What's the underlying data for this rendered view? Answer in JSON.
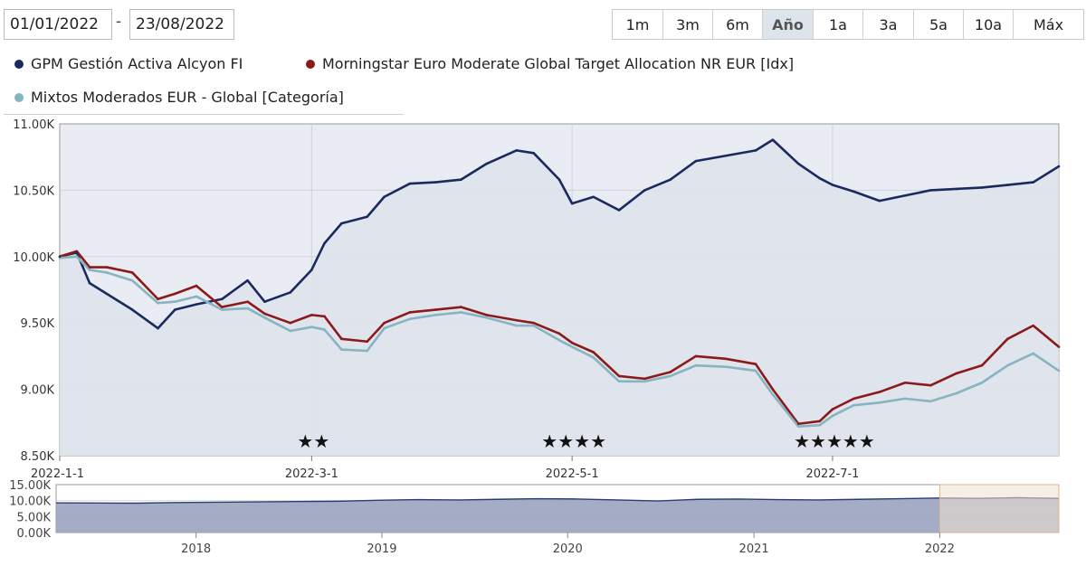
{
  "date_range": {
    "from": "01/01/2022",
    "separator": "-",
    "to": "23/08/2022"
  },
  "range_buttons": [
    {
      "label": "1m",
      "active": false
    },
    {
      "label": "3m",
      "active": false
    },
    {
      "label": "6m",
      "active": false
    },
    {
      "label": "Año",
      "active": true
    },
    {
      "label": "1a",
      "active": false
    },
    {
      "label": "3a",
      "active": false
    },
    {
      "label": "5a",
      "active": false
    },
    {
      "label": "10a",
      "active": false
    },
    {
      "label": "Máx",
      "active": false
    }
  ],
  "legend": [
    {
      "name": "GPM Gestión Activa Alcyon FI",
      "color": "#1b2a5e"
    },
    {
      "name": "Morningstar Euro Moderate Global Target Allocation NR EUR [Idx]",
      "color": "#8b1a1a"
    },
    {
      "name": "Mixtos Moderados EUR - Global [Categoría]",
      "color": "#86b4c0"
    }
  ],
  "colors": {
    "plot_bg": "#e9ecf2",
    "grid": "#cfd3dc",
    "nav_fill": "#9aa3c0",
    "nav_line": "#2e3c74",
    "nav_window": "#f1e2cf"
  },
  "chart_data": {
    "type": "line",
    "x_tick_labels": [
      "2022-1-1",
      "2022-3-1",
      "2022-5-1",
      "2022-7-1"
    ],
    "x_range": [
      "2022-01-01",
      "2022-08-23"
    ],
    "y_tick_labels": [
      "11.00K",
      "10.50K",
      "10.00K",
      "9.50K",
      "9.00K",
      "8.50K"
    ],
    "ylim": [
      8500,
      11000
    ],
    "grid": true,
    "series": [
      {
        "name": "GPM Gestión Activa Alcyon FI",
        "color": "#1b2a5e",
        "x": [
          "2022-01-01",
          "2022-01-05",
          "2022-01-08",
          "2022-01-12",
          "2022-01-18",
          "2022-01-24",
          "2022-01-28",
          "2022-02-02",
          "2022-02-08",
          "2022-02-14",
          "2022-02-18",
          "2022-02-24",
          "2022-03-01",
          "2022-03-04",
          "2022-03-08",
          "2022-03-14",
          "2022-03-18",
          "2022-03-24",
          "2022-03-30",
          "2022-04-05",
          "2022-04-11",
          "2022-04-18",
          "2022-04-22",
          "2022-04-28",
          "2022-05-01",
          "2022-05-06",
          "2022-05-12",
          "2022-05-18",
          "2022-05-24",
          "2022-05-30",
          "2022-06-06",
          "2022-06-13",
          "2022-06-17",
          "2022-06-23",
          "2022-06-28",
          "2022-07-01",
          "2022-07-06",
          "2022-07-12",
          "2022-07-18",
          "2022-07-24",
          "2022-07-30",
          "2022-08-05",
          "2022-08-11",
          "2022-08-17",
          "2022-08-23"
        ],
        "values": [
          10000,
          10030,
          9800,
          9720,
          9600,
          9460,
          9600,
          9640,
          9680,
          9820,
          9660,
          9730,
          9900,
          10100,
          10250,
          10300,
          10450,
          10550,
          10560,
          10580,
          10700,
          10800,
          10780,
          10580,
          10400,
          10450,
          10350,
          10500,
          10580,
          10720,
          10760,
          10800,
          10880,
          10700,
          10590,
          10540,
          10490,
          10420,
          10460,
          10500,
          10510,
          10520,
          10540,
          10560,
          10680
        ]
      },
      {
        "name": "Morningstar Euro Moderate Global Target Allocation NR EUR [Idx]",
        "color": "#8b1a1a",
        "x": [
          "2022-01-01",
          "2022-01-05",
          "2022-01-08",
          "2022-01-12",
          "2022-01-18",
          "2022-01-24",
          "2022-01-28",
          "2022-02-02",
          "2022-02-08",
          "2022-02-14",
          "2022-02-18",
          "2022-02-24",
          "2022-03-01",
          "2022-03-04",
          "2022-03-08",
          "2022-03-14",
          "2022-03-18",
          "2022-03-24",
          "2022-03-30",
          "2022-04-05",
          "2022-04-11",
          "2022-04-18",
          "2022-04-22",
          "2022-04-28",
          "2022-05-01",
          "2022-05-06",
          "2022-05-12",
          "2022-05-18",
          "2022-05-24",
          "2022-05-30",
          "2022-06-06",
          "2022-06-13",
          "2022-06-17",
          "2022-06-23",
          "2022-06-28",
          "2022-07-01",
          "2022-07-06",
          "2022-07-12",
          "2022-07-18",
          "2022-07-24",
          "2022-07-30",
          "2022-08-05",
          "2022-08-11",
          "2022-08-17",
          "2022-08-23"
        ],
        "values": [
          10000,
          10040,
          9920,
          9920,
          9880,
          9680,
          9720,
          9780,
          9620,
          9660,
          9570,
          9500,
          9560,
          9550,
          9380,
          9360,
          9500,
          9580,
          9600,
          9620,
          9560,
          9520,
          9500,
          9420,
          9350,
          9280,
          9100,
          9080,
          9130,
          9250,
          9230,
          9190,
          9000,
          8740,
          8760,
          8850,
          8930,
          8980,
          9050,
          9030,
          9120,
          9180,
          9380,
          9480,
          9320
        ]
      },
      {
        "name": "Mixtos Moderados EUR - Global [Categoría]",
        "color": "#86b4c0",
        "x": [
          "2022-01-01",
          "2022-01-05",
          "2022-01-08",
          "2022-01-12",
          "2022-01-18",
          "2022-01-24",
          "2022-01-28",
          "2022-02-02",
          "2022-02-08",
          "2022-02-14",
          "2022-02-18",
          "2022-02-24",
          "2022-03-01",
          "2022-03-04",
          "2022-03-08",
          "2022-03-14",
          "2022-03-18",
          "2022-03-24",
          "2022-03-30",
          "2022-04-05",
          "2022-04-11",
          "2022-04-18",
          "2022-04-22",
          "2022-04-28",
          "2022-05-01",
          "2022-05-06",
          "2022-05-12",
          "2022-05-18",
          "2022-05-24",
          "2022-05-30",
          "2022-06-06",
          "2022-06-13",
          "2022-06-17",
          "2022-06-23",
          "2022-06-28",
          "2022-07-01",
          "2022-07-06",
          "2022-07-12",
          "2022-07-18",
          "2022-07-24",
          "2022-07-30",
          "2022-08-05",
          "2022-08-11",
          "2022-08-17",
          "2022-08-23"
        ],
        "values": [
          9990,
          10000,
          9900,
          9880,
          9820,
          9650,
          9660,
          9700,
          9600,
          9610,
          9540,
          9440,
          9470,
          9450,
          9300,
          9290,
          9460,
          9530,
          9560,
          9580,
          9540,
          9480,
          9480,
          9370,
          9320,
          9240,
          9060,
          9060,
          9100,
          9180,
          9170,
          9140,
          8960,
          8720,
          8730,
          8800,
          8880,
          8900,
          8930,
          8910,
          8970,
          9050,
          9180,
          9270,
          9140
        ]
      }
    ],
    "annotations": [
      {
        "label": "★★",
        "x": "2022-03-01"
      },
      {
        "label": "★★★★",
        "x": "2022-05-01"
      },
      {
        "label": "★★★★★",
        "x": "2022-07-01"
      }
    ]
  },
  "navigator": {
    "y_tick_labels": [
      "15.00K",
      "10.00K",
      "5.00K",
      "0.00K"
    ],
    "ylim": [
      0,
      15000
    ],
    "x_tick_labels": [
      "2018",
      "2019",
      "2020",
      "2021",
      "2022"
    ],
    "x_range": [
      "2017-04-01",
      "2022-08-23"
    ],
    "selection": [
      "2022-01-01",
      "2022-08-23"
    ],
    "values": [
      9300,
      9250,
      9200,
      9400,
      9500,
      9600,
      9700,
      9800,
      10100,
      10300,
      10200,
      10400,
      10600,
      10500,
      10200,
      9900,
      10400,
      10500,
      10300,
      10200,
      10400,
      10600,
      10800,
      10700,
      10900,
      10700
    ]
  }
}
